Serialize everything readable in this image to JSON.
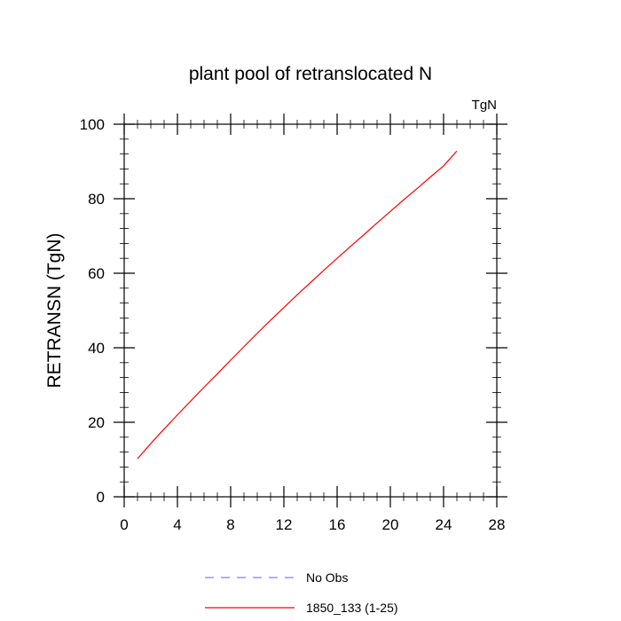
{
  "chart_data": {
    "type": "line",
    "title": "plant pool of retranslocated N",
    "units_label": "TgN",
    "xlabel": "",
    "ylabel": "RETRANSN  (TgN)",
    "xlim": [
      0,
      28
    ],
    "ylim": [
      0,
      100
    ],
    "xticks": [
      0,
      4,
      8,
      12,
      16,
      20,
      24,
      28
    ],
    "yticks": [
      0,
      20,
      40,
      60,
      80,
      100
    ],
    "x_tick_labels": [
      "0",
      "4",
      "8",
      "12",
      "16",
      "20",
      "24",
      "28"
    ],
    "y_tick_labels": [
      "0",
      "20",
      "40",
      "60",
      "80",
      "100"
    ],
    "grid": false,
    "legend_position": "bottom-center",
    "series": [
      {
        "name": "No Obs",
        "color": "#7f7fff",
        "dash": "dashed",
        "x": [],
        "y": []
      },
      {
        "name": "1850_133 (1-25)",
        "color": "#ff0000",
        "dash": "solid",
        "x": [
          1,
          2,
          3,
          4,
          5,
          6,
          7,
          8,
          9,
          10,
          11,
          12,
          13,
          14,
          15,
          16,
          17,
          18,
          19,
          20,
          21,
          22,
          23,
          24,
          25
        ],
        "y": [
          10.2,
          14.3,
          18.2,
          22.0,
          25.7,
          29.4,
          33.0,
          36.7,
          40.3,
          43.9,
          47.4,
          50.8,
          54.2,
          57.5,
          60.8,
          64.0,
          67.2,
          70.3,
          73.5,
          76.6,
          79.7,
          82.7,
          85.8,
          88.8,
          92.8
        ]
      }
    ]
  }
}
